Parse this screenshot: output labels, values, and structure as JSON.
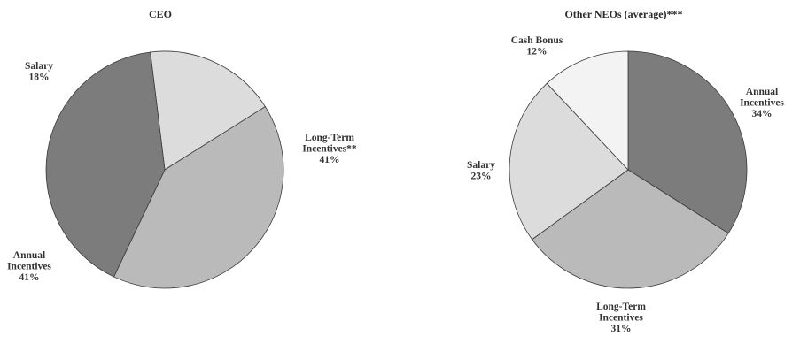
{
  "chart_data": [
    {
      "type": "pie",
      "title": "CEO",
      "slices": [
        {
          "name": "Salary",
          "value": 18,
          "label_lines": [
            "Salary",
            "18%"
          ],
          "color": "#dcdcdc"
        },
        {
          "name": "Long-Term Incentives",
          "value": 41,
          "label_lines": [
            "Long-Term",
            "Incentives**",
            "41%"
          ],
          "color": "#bababa"
        },
        {
          "name": "Annual Incentives",
          "value": 41,
          "label_lines": [
            "Annual",
            "Incentives",
            "41%"
          ],
          "color": "#7c7c7c"
        }
      ]
    },
    {
      "type": "pie",
      "title": "Other NEOs (average)***",
      "slices": [
        {
          "name": "Annual Incentives",
          "value": 34,
          "label_lines": [
            "Annual",
            "Incentives",
            "34%"
          ],
          "color": "#7c7c7c"
        },
        {
          "name": "Long-Term Incentives",
          "value": 31,
          "label_lines": [
            "Long-Term",
            "Incentives",
            "31%"
          ],
          "color": "#bababa"
        },
        {
          "name": "Salary",
          "value": 23,
          "label_lines": [
            "Salary",
            "23%"
          ],
          "color": "#dcdcdc"
        },
        {
          "name": "Cash Bonus",
          "value": 12,
          "label_lines": [
            "Cash Bonus",
            "12%"
          ],
          "color": "#f3f3f3"
        }
      ]
    }
  ]
}
